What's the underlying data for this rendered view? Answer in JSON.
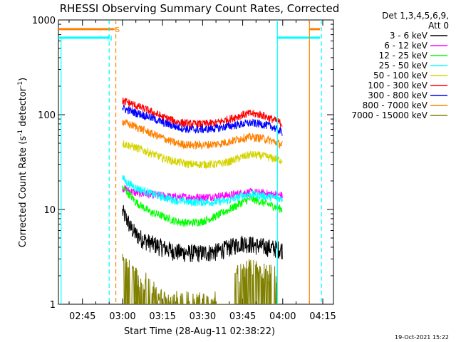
{
  "chart_data": {
    "type": "line",
    "title": "RHESSI Observing Summary Count Rates, Corrected",
    "xlabel": "Start Time (28-Aug-11 02:38:22)",
    "ylabel_main": "Corrected Count Rate (s",
    "ylabel_sup1": "-1",
    "ylabel_mid": " detector",
    "ylabel_sup2": "-1",
    "ylabel_end": ")",
    "y_scale": "log",
    "ylim": [
      1,
      1000
    ],
    "xlim_minutes": [
      156,
      259
    ],
    "x_ticks": [
      {
        "label": "02:45",
        "minutes": 165
      },
      {
        "label": "03:00",
        "minutes": 180
      },
      {
        "label": "03:15",
        "minutes": 195
      },
      {
        "label": "03:30",
        "minutes": 210
      },
      {
        "label": "03:45",
        "minutes": 225
      },
      {
        "label": "04:00",
        "minutes": 240
      },
      {
        "label": "04:15",
        "minutes": 255
      }
    ],
    "y_ticks": [
      {
        "label": "1",
        "value": 1
      },
      {
        "label": "10",
        "value": 10
      },
      {
        "label": "100",
        "value": 100
      },
      {
        "label": "1000",
        "value": 1000
      }
    ],
    "legend": {
      "placement": "right",
      "header1": "Det 1,3,4,5,6,9,",
      "header2": "Att 0"
    },
    "series": [
      {
        "name": "3 - 6 keV",
        "color": "#000000",
        "x": [
          180,
          181,
          182,
          183,
          185,
          187,
          190,
          195,
          200,
          205,
          210,
          215,
          220,
          225,
          230,
          235,
          240
        ],
        "y": [
          9.5,
          8.5,
          7.5,
          6.5,
          5.5,
          5.0,
          4.5,
          4.0,
          3.6,
          3.5,
          3.5,
          3.6,
          4.0,
          4.5,
          4.2,
          4.0,
          3.8
        ]
      },
      {
        "name": "6 - 12 keV",
        "color": "#ff00ff",
        "x": [
          180,
          181,
          182,
          185,
          190,
          195,
          200,
          205,
          210,
          215,
          220,
          225,
          228,
          232,
          236,
          240
        ],
        "y": [
          17,
          16.5,
          16,
          15,
          14.5,
          14,
          13.5,
          13.5,
          13.5,
          13.8,
          14.2,
          15,
          15.2,
          15,
          14.5,
          14
        ]
      },
      {
        "name": "12 - 25 keV",
        "color": "#00ff00",
        "x": [
          180,
          181,
          183,
          185,
          188,
          190,
          195,
          200,
          205,
          210,
          215,
          220,
          225,
          228,
          232,
          236,
          240
        ],
        "y": [
          17,
          16,
          14,
          12,
          10.5,
          9.5,
          8.5,
          7.5,
          7.2,
          7.5,
          8.5,
          10,
          12,
          13,
          12,
          11,
          10
        ]
      },
      {
        "name": "25 - 50 keV",
        "color": "#00ffff",
        "x": [
          180,
          181,
          182,
          185,
          190,
          195,
          200,
          205,
          210,
          215,
          220,
          225,
          228,
          232,
          236,
          240
        ],
        "y": [
          22,
          20,
          19,
          17,
          15,
          13.5,
          12.5,
          12,
          12,
          12,
          12.5,
          14,
          14.5,
          14,
          13.5,
          13
        ]
      },
      {
        "name": "50 - 100 keV",
        "color": "#d4d400",
        "x": [
          180,
          182,
          185,
          190,
          195,
          200,
          205,
          210,
          215,
          220,
          225,
          228,
          232,
          236,
          240
        ],
        "y": [
          50,
          48,
          45,
          40,
          35,
          32,
          30,
          30,
          30,
          32,
          36,
          38,
          37,
          35,
          33
        ]
      },
      {
        "name": "100 - 300 keV",
        "color": "#ff0000",
        "x": [
          180,
          182,
          185,
          190,
          195,
          200,
          205,
          210,
          215,
          220,
          225,
          228,
          232,
          236,
          240
        ],
        "y": [
          140,
          135,
          125,
          110,
          95,
          85,
          80,
          80,
          82,
          90,
          100,
          103,
          100,
          90,
          80
        ]
      },
      {
        "name": "300 - 800 keV",
        "color": "#0000ff",
        "x": [
          180,
          182,
          185,
          190,
          195,
          200,
          205,
          210,
          215,
          220,
          225,
          228,
          232,
          236,
          240
        ],
        "y": [
          118,
          112,
          105,
          95,
          83,
          75,
          70,
          70,
          72,
          76,
          80,
          82,
          80,
          75,
          65
        ]
      },
      {
        "name": "800 - 7000 keV",
        "color": "#ff8000",
        "x": [
          180,
          182,
          185,
          190,
          195,
          200,
          205,
          210,
          215,
          220,
          225,
          228,
          232,
          236,
          240
        ],
        "y": [
          85,
          80,
          75,
          65,
          57,
          50,
          48,
          48,
          49,
          52,
          57,
          58,
          57,
          53,
          48
        ]
      },
      {
        "name": "7000 - 15000 keV",
        "color": "#808000",
        "x": [
          180,
          181,
          182,
          183,
          185,
          187,
          190,
          195,
          200,
          205,
          210,
          215,
          220,
          222,
          225,
          228,
          232,
          236,
          238
        ],
        "y": [
          2.5,
          3.0,
          2.5,
          2.0,
          1.8,
          1.6,
          1.5,
          1.0,
          1.0,
          1.0,
          1.0,
          1.0,
          1.0,
          1.8,
          2.0,
          2.2,
          2.0,
          1.9,
          1.8
        ]
      }
    ],
    "markers": [
      {
        "type": "orange_bar",
        "label": "S",
        "color": "#ff8000",
        "start_min": 156,
        "end_min": 177,
        "level": 800
      },
      {
        "type": "orange_bar",
        "color": "#ff8000",
        "start_min": 250,
        "end_min": 254,
        "level": 800
      },
      {
        "type": "cyan_bar",
        "label": "N",
        "color": "#00ffff",
        "start_min": 156,
        "end_min": 175,
        "level": 650
      },
      {
        "type": "cyan_bar",
        "color": "#00ffff",
        "start_min": 238,
        "end_min": 254,
        "level": 650
      }
    ],
    "vertical_lines": [
      {
        "color": "#00ffff",
        "style": "dashed",
        "minutes": 175
      },
      {
        "color": "#ff8000",
        "style": "dashed",
        "minutes": 177.5
      },
      {
        "color": "#00ffff",
        "style": "solid",
        "minutes": 238
      },
      {
        "color": "#ff8000",
        "style": "solid",
        "minutes": 250
      },
      {
        "color": "#00ffff",
        "style": "dashed",
        "minutes": 254.5
      }
    ],
    "footer_date": "19-Oct-2021 15:22"
  }
}
